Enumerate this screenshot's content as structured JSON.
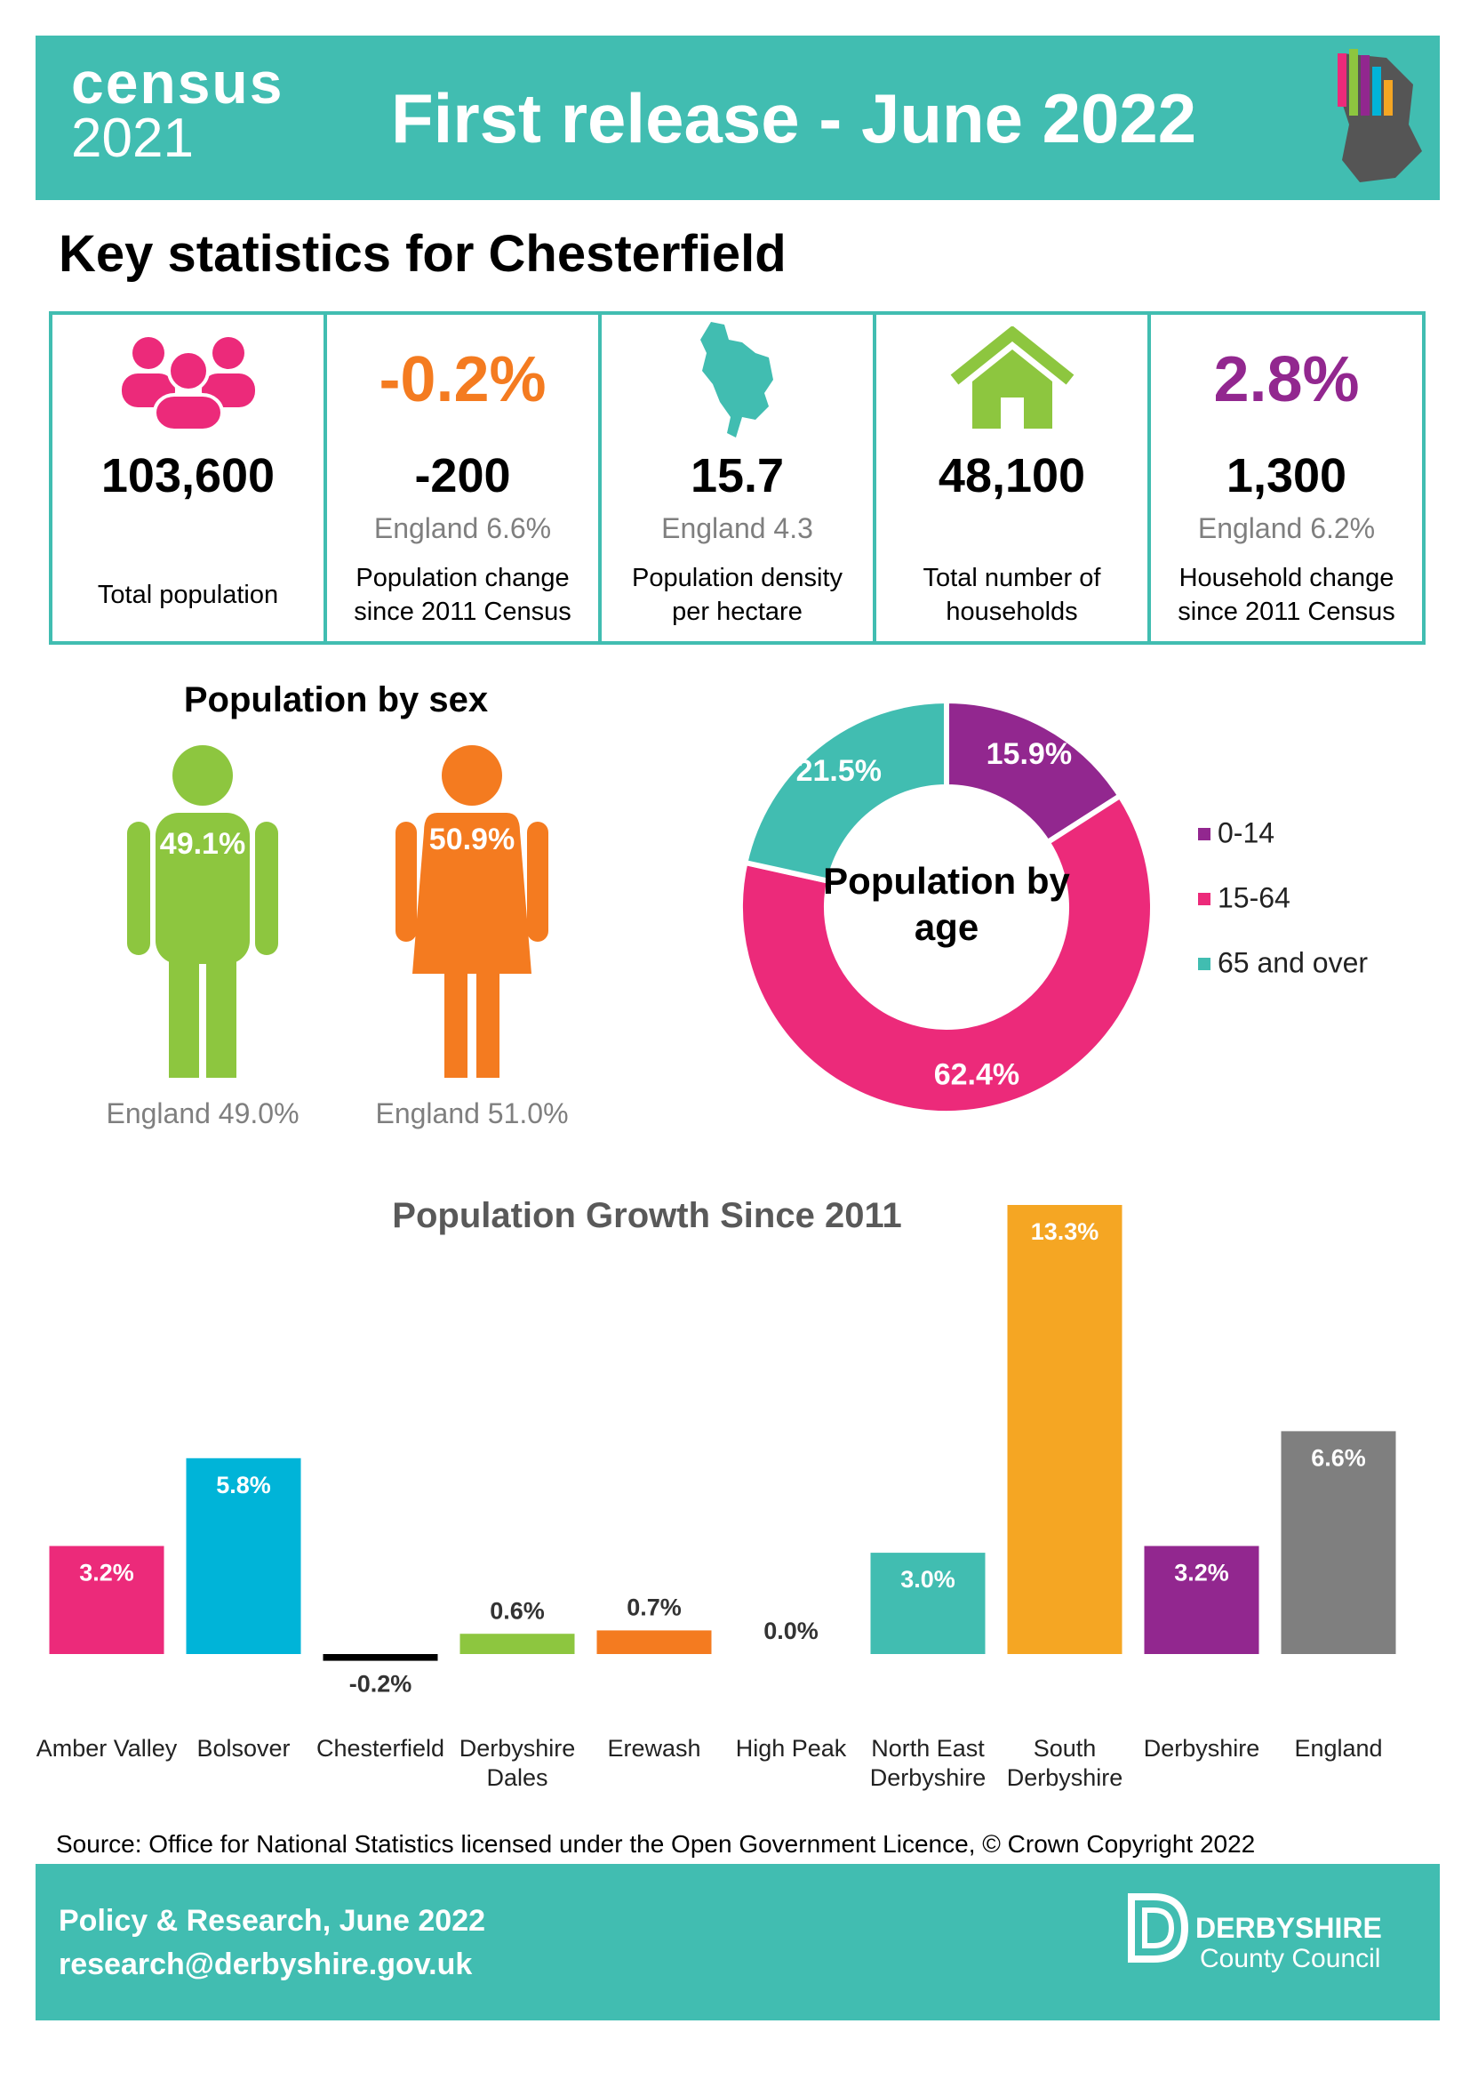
{
  "header": {
    "logo_word": "census",
    "logo_year": "2021",
    "title": "First release - June 2022"
  },
  "heading": "Key statistics for Chesterfield",
  "stats": [
    {
      "value": "103,600",
      "label": "Total population"
    },
    {
      "headline": "-0.2%",
      "value": "-200",
      "comparison": "England 6.6%",
      "label": "Population change since 2011 Census"
    },
    {
      "value": "15.7",
      "comparison": "England 4.3",
      "label": "Population density per hectare"
    },
    {
      "value": "48,100",
      "label": "Total number of households"
    },
    {
      "headline": "2.8%",
      "value": "1,300",
      "comparison": "England 6.2%",
      "label": "Household change since 2011 Census"
    }
  ],
  "sex": {
    "title": "Population by sex",
    "male": {
      "share": "49.1%",
      "england": "England 49.0%"
    },
    "female": {
      "share": "50.9%",
      "england": "England 51.0%"
    }
  },
  "chart_data": [
    {
      "type": "pie",
      "title": "Population by age",
      "categories": [
        "0-14",
        "15-64",
        "65 and over"
      ],
      "values": [
        15.9,
        62.4,
        21.5
      ],
      "value_labels": [
        "15.9%",
        "62.4%",
        "21.5%"
      ],
      "colors": [
        "#92278f",
        "#ec2a7a",
        "#41bdb1"
      ]
    },
    {
      "type": "bar",
      "title": "Population Growth Since 2011",
      "categories": [
        "Amber Valley",
        "Bolsover",
        "Chesterfield",
        "Derbyshire Dales",
        "Erewash",
        "High Peak",
        "North East Derbyshire",
        "South Derbyshire",
        "Derbyshire",
        "England"
      ],
      "values": [
        3.2,
        5.8,
        -0.2,
        0.6,
        0.7,
        0.0,
        3.0,
        13.3,
        3.2,
        6.6
      ],
      "value_labels": [
        "3.2%",
        "5.8%",
        "-0.2%",
        "0.6%",
        "0.7%",
        "0.0%",
        "3.0%",
        "13.3%",
        "3.2%",
        "6.6%"
      ],
      "colors": [
        "#ec2a7a",
        "#00b4d8",
        "#000000",
        "#8dc63f",
        "#f47b20",
        "#7f7f7f",
        "#41bdb1",
        "#f5a623",
        "#92278f",
        "#7f7f7f"
      ]
    }
  ],
  "source": "Source: Office for National Statistics licensed under the Open Government Licence, © Crown Copyright 2022",
  "footer": {
    "line1": "Policy & Research, June 2022",
    "line2": "research@derbyshire.gov.uk",
    "org_name": "DERBYSHIRE",
    "org_sub": "County Council"
  }
}
